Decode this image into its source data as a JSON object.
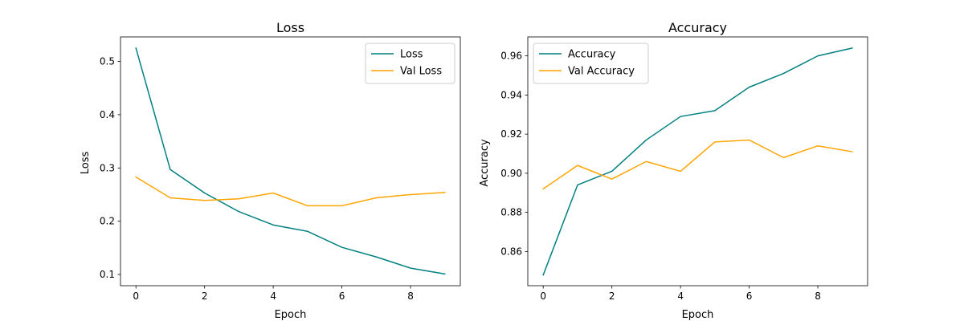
{
  "chart_data": [
    {
      "type": "line",
      "title": "Loss",
      "xlabel": "Epoch",
      "ylabel": "Loss",
      "x": [
        0,
        1,
        2,
        3,
        4,
        5,
        6,
        7,
        8,
        9
      ],
      "xlim": [
        -0.45,
        9.45
      ],
      "ylim": [
        0.079,
        0.546
      ],
      "xticks": [
        "0",
        "2",
        "4",
        "6",
        "8"
      ],
      "yticks": [
        "0.1",
        "0.2",
        "0.3",
        "0.4",
        "0.5"
      ],
      "legend_position": "top-right",
      "grid": false,
      "series": [
        {
          "name": "Loss",
          "color": "#008080",
          "values": [
            0.525,
            0.297,
            0.253,
            0.218,
            0.193,
            0.181,
            0.151,
            0.133,
            0.112,
            0.101
          ]
        },
        {
          "name": "Val Loss",
          "color": "#FFA500",
          "values": [
            0.283,
            0.244,
            0.239,
            0.242,
            0.253,
            0.229,
            0.229,
            0.244,
            0.25,
            0.254
          ]
        }
      ]
    },
    {
      "type": "line",
      "title": "Accuracy",
      "xlabel": "Epoch",
      "ylabel": "Accuracy",
      "x": [
        0,
        1,
        2,
        3,
        4,
        5,
        6,
        7,
        8,
        9
      ],
      "xlim": [
        -0.45,
        9.45
      ],
      "ylim": [
        0.8425,
        0.9697
      ],
      "xticks": [
        "0",
        "2",
        "4",
        "6",
        "8"
      ],
      "yticks": [
        "0.86",
        "0.88",
        "0.90",
        "0.92",
        "0.94",
        "0.96"
      ],
      "legend_position": "top-left",
      "grid": false,
      "series": [
        {
          "name": "Accuracy",
          "color": "#008080",
          "values": [
            0.848,
            0.894,
            0.901,
            0.917,
            0.929,
            0.932,
            0.944,
            0.951,
            0.96,
            0.964
          ]
        },
        {
          "name": "Val Accuracy",
          "color": "#FFA500",
          "values": [
            0.892,
            0.904,
            0.897,
            0.906,
            0.901,
            0.916,
            0.917,
            0.908,
            0.914,
            0.911
          ]
        }
      ]
    }
  ]
}
